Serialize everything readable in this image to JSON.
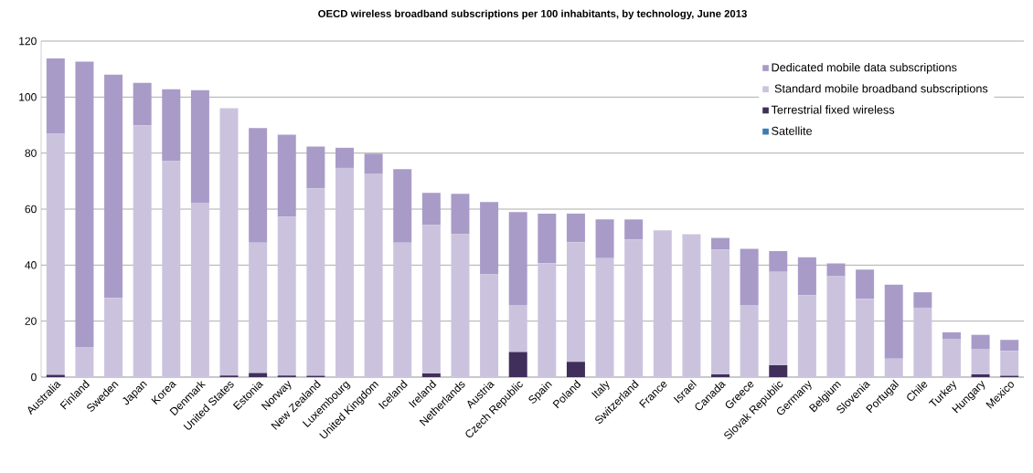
{
  "chart_data": {
    "type": "bar",
    "stacked": true,
    "title": "OECD wireless broadband subscriptions per 100 inhabitants, by technology, June 2013",
    "categories": [
      "Australia",
      "Finland",
      "Sweden",
      "Japan",
      "Korea",
      "Denmark",
      "United States",
      "Estonia",
      "Norway",
      "New Zealand",
      "Luxembourg",
      "United Kingdom",
      "Iceland",
      "Ireland",
      "Netherlands",
      "Austria",
      "Czech Republic",
      "Spain",
      "Poland",
      "Italy",
      "Switzerland",
      "France",
      "Israel",
      "Canada",
      "Greece",
      "Slovak Republic",
      "Germany",
      "Belgium",
      "Slovenia",
      "Portugal",
      "Chile",
      "Turkey",
      "Hungary",
      "Mexico"
    ],
    "series": [
      {
        "name": "Satellite",
        "color": "#3a7db4",
        "values": [
          0,
          0,
          0,
          0,
          0,
          0,
          0,
          0,
          0,
          0,
          0,
          0,
          0,
          0,
          0,
          0,
          0,
          0,
          0,
          0,
          0,
          0,
          0,
          0,
          0,
          0,
          0,
          0,
          0,
          0,
          0,
          0,
          0,
          0
        ]
      },
      {
        "name": "Terrestrial fixed wireless",
        "color": "#3f2f5a",
        "values": [
          0.8,
          0,
          0,
          0,
          0,
          0,
          0.6,
          1.5,
          0.6,
          0.5,
          0,
          0,
          0,
          1.3,
          0,
          0,
          9,
          0,
          5.5,
          0,
          0,
          0,
          0,
          1,
          0,
          4.2,
          0,
          0,
          0,
          0,
          0,
          0,
          1,
          0.5
        ]
      },
      {
        "name": " Standard mobile broadband subscriptions",
        "color": "#cbc3de",
        "values": [
          86.1,
          10.8,
          28.3,
          89.9,
          77.1,
          62.3,
          95.4,
          46.5,
          56.7,
          66.9,
          74.7,
          72.7,
          48,
          53,
          51,
          36.7,
          16.8,
          40.7,
          42.7,
          42.5,
          49.1,
          52.4,
          51,
          44.5,
          25.8,
          33.4,
          29.3,
          36,
          28,
          6.6,
          24.8,
          13.5,
          8.9,
          8.9
        ]
      },
      {
        "name": "Dedicated mobile data subscriptions",
        "color": "#a99bc8",
        "values": [
          26.9,
          101.9,
          79.7,
          15.2,
          25.7,
          40.2,
          0,
          40.9,
          29.3,
          14.9,
          7.2,
          7.1,
          26.3,
          11.5,
          14.5,
          25.8,
          33.1,
          17.7,
          10.2,
          13.8,
          7.2,
          0,
          0,
          4.2,
          20,
          7.4,
          13.5,
          4.6,
          10.4,
          26.4,
          5.5,
          2.5,
          5.2,
          3.9
        ]
      }
    ],
    "ylim": [
      0,
      120
    ],
    "yticks": [
      0,
      20,
      40,
      60,
      80,
      100,
      120
    ],
    "grid": "y",
    "legend": "top right"
  }
}
